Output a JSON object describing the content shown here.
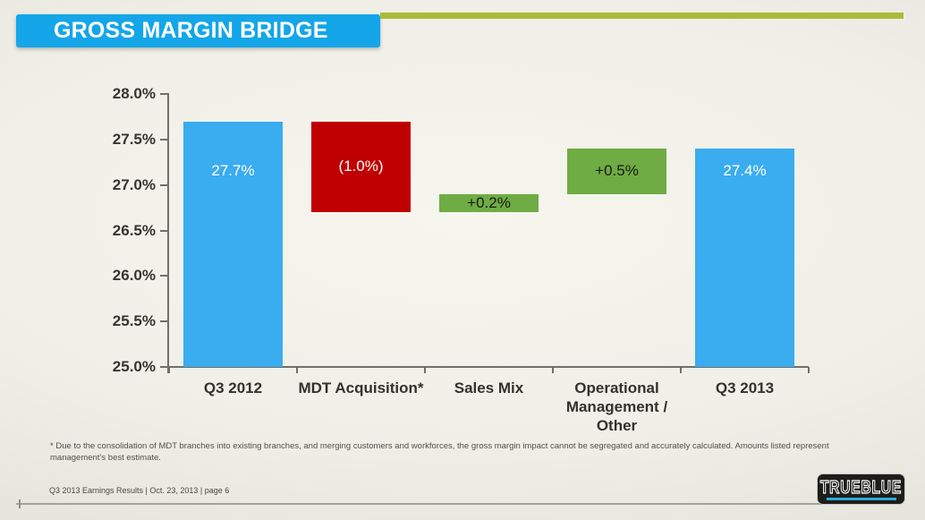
{
  "slide": {
    "title": "GROSS MARGIN BRIDGE",
    "footnote_lines": [
      "* Due to the consolidation of MDT branches into existing branches, and merging  customers and workforces, the gross margin impact cannot be segregated and accurately calculated. Amounts listed represent",
      "management’s best estimate."
    ],
    "footer": "Q3 2013 Earnings Results | Oct. 23, 2013  | page 6",
    "logo_text": "TRUEBLUE"
  },
  "colors": {
    "banner_blue": "#14a6e8",
    "accent_olive": "#a9bc38",
    "bar_blue": "#3aacf0",
    "bar_red": "#c00000",
    "bar_green": "#6fac44",
    "axis_gray": "#70706a",
    "text_dark": "#32322c",
    "logo_underline_blue": "#2aa9de"
  },
  "chart_data": {
    "type": "bar",
    "subtype": "waterfall",
    "title": "GROSS MARGIN BRIDGE",
    "xlabel": "",
    "ylabel": "",
    "ylim": [
      25.0,
      28.0
    ],
    "ytick_step": 0.5,
    "grid": false,
    "legend": false,
    "categories": [
      "Q3 2012",
      "MDT Acquisition*",
      "Sales Mix",
      "Operational Management / Other",
      "Q3 2013"
    ],
    "yticks": [
      {
        "label": "28.0%",
        "value": 28.0
      },
      {
        "label": "27.5%",
        "value": 27.5
      },
      {
        "label": "27.0%",
        "value": 27.0
      },
      {
        "label": "26.5%",
        "value": 26.5
      },
      {
        "label": "26.0%",
        "value": 26.0
      },
      {
        "label": "25.5%",
        "value": 25.5
      },
      {
        "label": "25.0%",
        "value": 25.0
      }
    ],
    "bars": [
      {
        "category": "Q3 2012",
        "from": 25.0,
        "to": 27.7,
        "label": "27.7%",
        "label_value": 27.15,
        "color": "#3aacf0",
        "label_color": "#ffffff"
      },
      {
        "category": "MDT Acquisition*",
        "from": 26.7,
        "to": 27.7,
        "label": "(1.0%)",
        "label_value": 27.2,
        "color": "#c00000",
        "label_color": "#ffffff"
      },
      {
        "category": "Sales Mix",
        "from": 26.7,
        "to": 26.9,
        "label": "+0.2%",
        "label_value": 26.8,
        "color": "#6fac44",
        "label_color": "#1a1a14"
      },
      {
        "category": "Operational Management / Other",
        "from": 26.9,
        "to": 27.4,
        "label": "+0.5%",
        "label_value": 27.15,
        "color": "#6fac44",
        "label_color": "#1a1a14"
      },
      {
        "category": "Q3 2013",
        "from": 25.0,
        "to": 27.4,
        "label": "27.4%",
        "label_value": 27.15,
        "color": "#3aacf0",
        "label_color": "#ffffff"
      }
    ]
  }
}
